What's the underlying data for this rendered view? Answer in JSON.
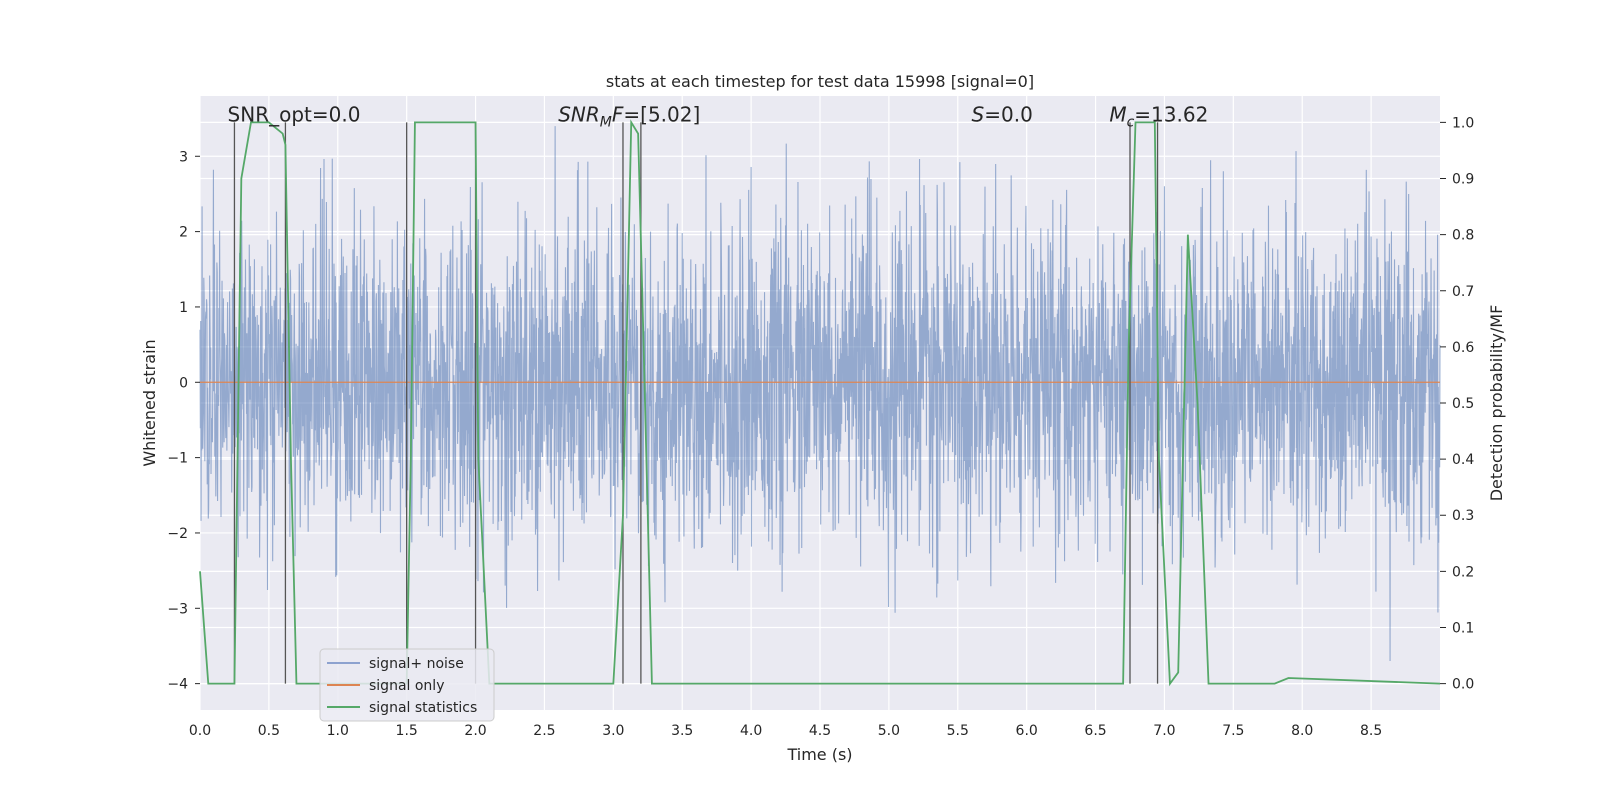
{
  "chart_data": {
    "type": "line",
    "title": "stats at each timestep for test data 15998 [signal=0]",
    "xlabel": "Time (s)",
    "ylabel": "Whitened strain",
    "y2label": "Detection probability/MF",
    "xlim": [
      0.0,
      9.0
    ],
    "ylim": [
      -4.35,
      3.8
    ],
    "y2lim": [
      -0.047,
      1.047
    ],
    "x_ticks": [
      "0.0",
      "0.5",
      "1.0",
      "1.5",
      "2.0",
      "2.5",
      "3.0",
      "3.5",
      "4.0",
      "4.5",
      "5.0",
      "5.5",
      "6.0",
      "6.5",
      "7.0",
      "7.5",
      "8.0",
      "8.5"
    ],
    "y_ticks": [
      "−4",
      "−3",
      "−2",
      "−1",
      "0",
      "1",
      "2",
      "3"
    ],
    "y2_ticks": [
      "0.0",
      "0.1",
      "0.2",
      "0.3",
      "0.4",
      "0.5",
      "0.6",
      "0.7",
      "0.8",
      "0.9",
      "1.0"
    ],
    "annotations": [
      {
        "label": "SNR_opt=0.0",
        "x": 0.2
      },
      {
        "label": "SNR_MF=[5.02]",
        "x": 2.6
      },
      {
        "label": "S=0.0",
        "x": 5.6
      },
      {
        "label": "M_c=13.62",
        "x": 6.6
      }
    ],
    "vertical_lines_x": [
      0.25,
      0.62,
      1.5,
      2.0,
      3.07,
      3.2,
      6.75,
      6.95
    ],
    "vertical_lines_ymax_prob": 1.0,
    "series": [
      {
        "name": "signal+ noise",
        "color": "#4c72b0",
        "kind": "noise",
        "sample_rate_hz": 400,
        "envelope": "approx. ±1.2 dense band with spikes to about ±3.4"
      },
      {
        "name": "signal only",
        "color": "#dd8452",
        "kind": "constant",
        "value": 0.0
      },
      {
        "name": "signal statistics",
        "color": "#55a868",
        "axis": "right",
        "x": [
          0.0,
          0.06,
          0.25,
          0.3,
          0.37,
          0.5,
          0.6,
          0.62,
          0.66,
          0.7,
          1.5,
          1.53,
          1.56,
          1.6,
          2.0,
          2.02,
          2.1,
          3.0,
          3.07,
          3.13,
          3.18,
          3.22,
          3.28,
          6.7,
          6.74,
          6.79,
          6.93,
          6.96,
          7.04,
          7.1,
          7.17,
          7.24,
          7.32,
          7.8,
          7.9,
          9.0
        ],
        "y": [
          0.2,
          0.0,
          0.0,
          0.9,
          1.0,
          1.0,
          0.98,
          0.96,
          0.4,
          0.0,
          0.0,
          0.4,
          1.0,
          1.0,
          1.0,
          0.4,
          0.0,
          0.0,
          0.3,
          1.0,
          0.98,
          0.6,
          0.0,
          0.0,
          0.6,
          1.0,
          1.0,
          0.4,
          0.0,
          0.02,
          0.8,
          0.5,
          0.0,
          0.0,
          0.01,
          0.0
        ]
      }
    ],
    "legend": {
      "position": "lower-left",
      "entries": [
        "signal+ noise",
        "signal only",
        "signal statistics"
      ]
    },
    "grid": true
  }
}
